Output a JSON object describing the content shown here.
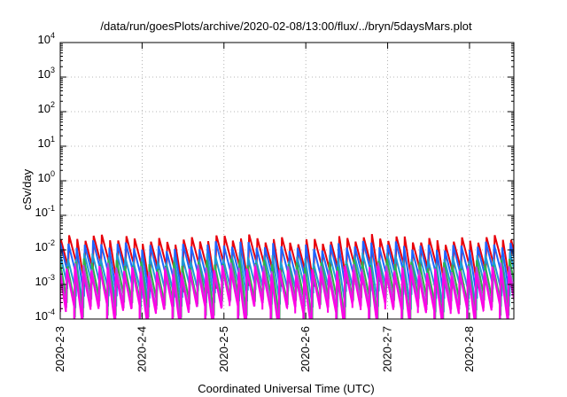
{
  "chart_data": {
    "type": "line",
    "title": "/data/run/goesPlots/archive/2020-02-08/13:00/flux/../bryn/5daysMars.plot",
    "xlabel": "Coordinated Universal Time (UTC)",
    "ylabel": "cSv/day",
    "x_tick_labels": [
      "2020-2-3",
      "2020-2-4",
      "2020-2-5",
      "2020-2-6",
      "2020-2-7",
      "2020-2-8"
    ],
    "xlim": [
      "2020-02-03",
      "2020-02-08 13:00"
    ],
    "y_scale": "log",
    "ylim": [
      0.0001,
      10000
    ],
    "y_ticks": [
      {
        "base": "10",
        "exp": "-4"
      },
      {
        "base": "10",
        "exp": "-3"
      },
      {
        "base": "10",
        "exp": "-2"
      },
      {
        "base": "10",
        "exp": "-1"
      },
      {
        "base": "10",
        "exp": "0"
      },
      {
        "base": "10",
        "exp": "1"
      },
      {
        "base": "10",
        "exp": "2"
      },
      {
        "base": "10",
        "exp": "3"
      },
      {
        "base": "10",
        "exp": "4"
      }
    ],
    "grid": true,
    "series": [
      {
        "color": "#e8000b",
        "sawtooth_peak": 0.02,
        "sawtooth_trough": 0.003,
        "cycle_days": 0.1,
        "offset_days": 0.0
      },
      {
        "color": "#1e64ff",
        "sawtooth_peak": 0.013,
        "sawtooth_trough": 0.0018,
        "cycle_days": 0.1,
        "offset_days": 0.008
      },
      {
        "color": "#1e9bd7",
        "sawtooth_peak": 0.006,
        "sawtooth_trough": 0.0008,
        "cycle_days": 0.1,
        "offset_days": 0.015
      },
      {
        "color": "#2db34a",
        "sawtooth_peak": 0.004,
        "sawtooth_trough": 0.00035,
        "cycle_days": 0.1,
        "offset_days": 0.02
      },
      {
        "color": "#b44bd6",
        "sawtooth_peak": 0.003,
        "sawtooth_trough": 0.00025,
        "cycle_days": 0.1,
        "offset_days": 0.025
      },
      {
        "color": "#ff00e6",
        "sawtooth_peak": 0.0025,
        "sawtooth_trough": 0.0002,
        "cycle_days": 0.1,
        "offset_days": 0.03
      }
    ]
  }
}
